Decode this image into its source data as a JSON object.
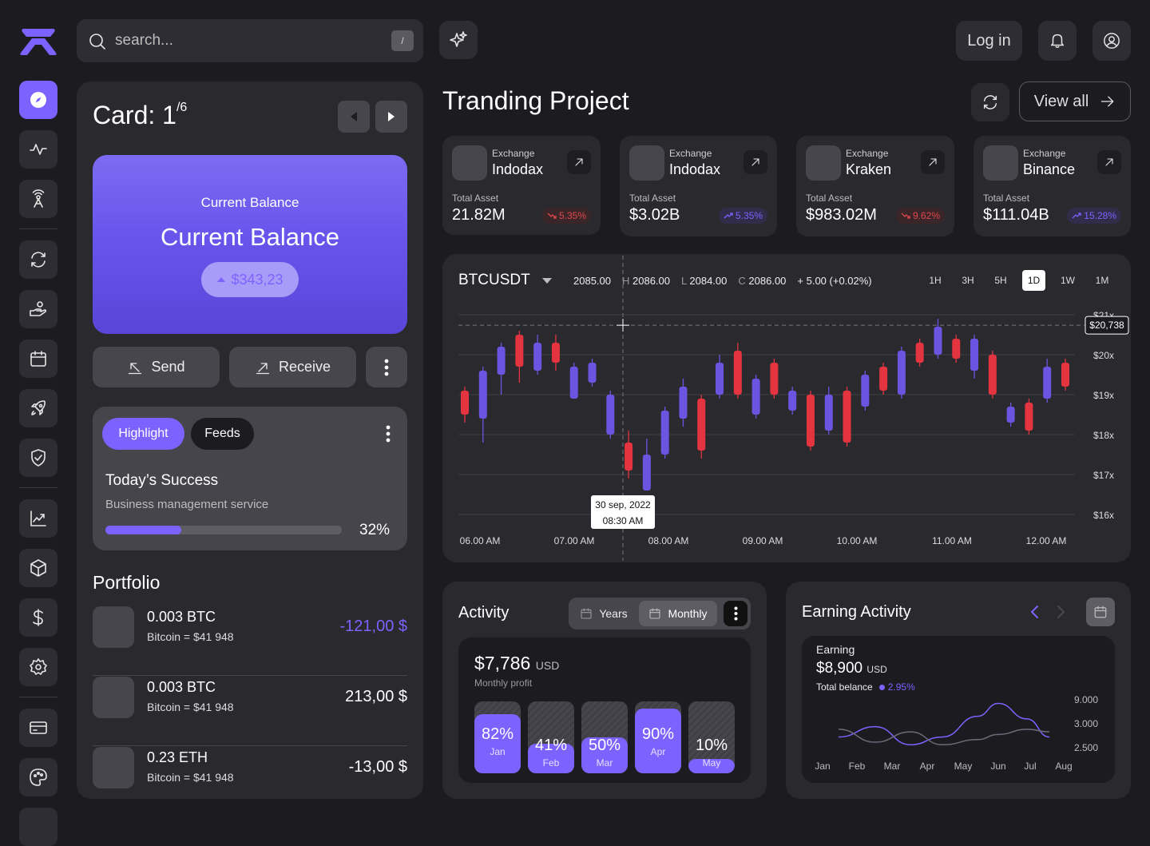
{
  "header": {
    "search_placeholder": "search...",
    "search_shortcut": "/",
    "login_label": "Log in"
  },
  "sidebar": {
    "items": [
      "compass",
      "activity",
      "broadcast",
      "refresh",
      "hand-coin",
      "calendar",
      "rocket",
      "shield-check",
      "trending",
      "box",
      "dollar",
      "gear",
      "card",
      "palette"
    ]
  },
  "card": {
    "title_prefix": "Card: ",
    "current": "1",
    "total": "/6",
    "balance_small": "Current Balance",
    "balance_big": "Current Balance",
    "balance_amount": "$343,23",
    "send_label": "Send",
    "receive_label": "Receive"
  },
  "highlight": {
    "tab_active": "Highlight",
    "tab_other": "Feeds",
    "title": "Today’s Success",
    "subtitle": "Business management service",
    "progress": 32,
    "progress_label": "32%"
  },
  "portfolio": {
    "title": "Portfolio",
    "items": [
      {
        "amount": "0.003 BTC",
        "sub": "Bitcoin = $41 948",
        "value": "-121,00 $",
        "color": "#7c63ff"
      },
      {
        "amount": "0.003 BTC",
        "sub": "Bitcoin = $41 948",
        "value": "213,00 $",
        "color": "#ffffff"
      },
      {
        "amount": "0.23 ETH",
        "sub": "Bitcoin = $41 948",
        "value": "-13,00 $",
        "color": "#ffffff"
      }
    ]
  },
  "trading": {
    "title": "Tranding Project",
    "view_all": "View all",
    "exchanges": [
      {
        "label": "Exchange",
        "name": "Indodax",
        "asset_label": "Total Asset",
        "value": "21.82M",
        "change": "5.35%",
        "direction": "down"
      },
      {
        "label": "Exchange",
        "name": "Indodax",
        "asset_label": "Total Asset",
        "value": "$3.02B",
        "change": "5.35%",
        "direction": "up"
      },
      {
        "label": "Exchange",
        "name": "Kraken",
        "asset_label": "Total Asset",
        "value": "$983.02M",
        "change": "9.62%",
        "direction": "down"
      },
      {
        "label": "Exchange",
        "name": "Binance",
        "asset_label": "Total Asset",
        "value": "$111.04B",
        "change": "15.28%",
        "direction": "up"
      }
    ]
  },
  "chart_data": [
    {
      "type": "candlestick",
      "symbol": "BTCUSDT",
      "open": "2085.00",
      "high_prefix": "H",
      "high": "2086.00",
      "low_prefix": "L",
      "low": "2084.00",
      "close_prefix": "C",
      "close": "2086.00",
      "change": "+ 5.00 (+0.02%)",
      "timeframes": [
        "1H",
        "3H",
        "5H",
        "1D",
        "1W",
        "1M"
      ],
      "active_timeframe": "1D",
      "y_ticks": [
        "$21x",
        "$20x",
        "$19x",
        "$18x",
        "$17x",
        "$16x"
      ],
      "ylim": [
        16,
        21
      ],
      "x_ticks": [
        "06.00 AM",
        "07.00 AM",
        "08.00 AM",
        "09.00 AM",
        "10.00 AM",
        "11.00 AM",
        "12.00 AM"
      ],
      "current_price": 20.738,
      "current_price_label": "$20,738",
      "tooltip_date": "30 sep, 2022",
      "tooltip_time": "08:30 AM",
      "candles": [
        {
          "o": 19.1,
          "c": 18.5,
          "h": 19.2,
          "l": 18.3
        },
        {
          "o": 18.4,
          "c": 19.6,
          "h": 19.7,
          "l": 17.8
        },
        {
          "o": 19.5,
          "c": 20.2,
          "h": 20.3,
          "l": 19.0
        },
        {
          "o": 20.5,
          "c": 19.7,
          "h": 20.6,
          "l": 19.3
        },
        {
          "o": 19.6,
          "c": 20.3,
          "h": 20.5,
          "l": 19.5
        },
        {
          "o": 20.3,
          "c": 19.8,
          "h": 20.5,
          "l": 19.6
        },
        {
          "o": 18.9,
          "c": 19.7,
          "h": 19.8,
          "l": 18.9
        },
        {
          "o": 19.3,
          "c": 19.8,
          "h": 19.9,
          "l": 19.2
        },
        {
          "o": 18.0,
          "c": 19.0,
          "h": 19.1,
          "l": 17.9
        },
        {
          "o": 17.8,
          "c": 17.1,
          "h": 18.1,
          "l": 16.9
        },
        {
          "o": 16.6,
          "c": 17.5,
          "h": 17.9,
          "l": 16.6
        },
        {
          "o": 17.5,
          "c": 18.6,
          "h": 18.7,
          "l": 17.4
        },
        {
          "o": 18.4,
          "c": 19.2,
          "h": 19.4,
          "l": 18.2
        },
        {
          "o": 18.9,
          "c": 17.6,
          "h": 19.0,
          "l": 17.4
        },
        {
          "o": 19.0,
          "c": 19.8,
          "h": 20.0,
          "l": 18.9
        },
        {
          "o": 20.1,
          "c": 19.0,
          "h": 20.3,
          "l": 18.9
        },
        {
          "o": 18.5,
          "c": 19.4,
          "h": 19.5,
          "l": 18.4
        },
        {
          "o": 19.8,
          "c": 19.0,
          "h": 19.9,
          "l": 18.9
        },
        {
          "o": 18.6,
          "c": 19.1,
          "h": 19.2,
          "l": 18.5
        },
        {
          "o": 19.0,
          "c": 17.7,
          "h": 19.1,
          "l": 17.6
        },
        {
          "o": 18.1,
          "c": 19.0,
          "h": 19.2,
          "l": 18.0
        },
        {
          "o": 19.1,
          "c": 17.8,
          "h": 19.2,
          "l": 17.7
        },
        {
          "o": 18.7,
          "c": 19.5,
          "h": 19.6,
          "l": 18.6
        },
        {
          "o": 19.7,
          "c": 19.1,
          "h": 19.8,
          "l": 19.0
        },
        {
          "o": 19.0,
          "c": 20.1,
          "h": 20.2,
          "l": 18.9
        },
        {
          "o": 20.3,
          "c": 19.8,
          "h": 20.4,
          "l": 19.7
        },
        {
          "o": 20.0,
          "c": 20.7,
          "h": 20.9,
          "l": 19.9
        },
        {
          "o": 20.4,
          "c": 19.9,
          "h": 20.5,
          "l": 19.8
        },
        {
          "o": 19.6,
          "c": 20.4,
          "h": 20.5,
          "l": 19.4
        },
        {
          "o": 20.0,
          "c": 19.0,
          "h": 20.1,
          "l": 18.9
        },
        {
          "o": 18.3,
          "c": 18.7,
          "h": 18.8,
          "l": 18.2
        },
        {
          "o": 18.8,
          "c": 18.1,
          "h": 18.9,
          "l": 18.0
        },
        {
          "o": 18.9,
          "c": 19.7,
          "h": 19.9,
          "l": 18.8
        },
        {
          "o": 19.8,
          "c": 19.2,
          "h": 19.9,
          "l": 19.1
        }
      ]
    },
    {
      "type": "bar",
      "title": "Activity",
      "periods": [
        "Years",
        "Monthly"
      ],
      "active_period": "Monthly",
      "headline": "$7,786",
      "headline_unit": "USD",
      "subtitle": "Monthly profit",
      "categories": [
        "Jan",
        "Feb",
        "Mar",
        "Apr",
        "May"
      ],
      "values": [
        82,
        41,
        50,
        90,
        10
      ],
      "labels": [
        "82%",
        "41%",
        "50%",
        "90%",
        "10%"
      ]
    },
    {
      "type": "line",
      "title": "Earning Activity",
      "label": "Earning",
      "headline": "$8,900",
      "headline_unit": "USD",
      "total_label": "Total belance",
      "total_change": "2.95%",
      "categories": [
        "Jan",
        "Feb",
        "Mar",
        "Apr",
        "May",
        "Jun",
        "Jul",
        "Aug"
      ],
      "y_ticks": [
        "9.000",
        "3.000",
        "2.500"
      ],
      "series": [
        {
          "values": [
            2.9,
            3.3,
            2.6,
            2.9,
            3.7,
            4.2,
            3.6,
            2.9
          ],
          "color": "#7c63ff"
        },
        {
          "values": [
            3.2,
            2.7,
            3.1,
            2.6,
            2.8,
            3.0,
            3.2,
            3.1
          ],
          "color": "#6e6b78"
        }
      ]
    }
  ]
}
